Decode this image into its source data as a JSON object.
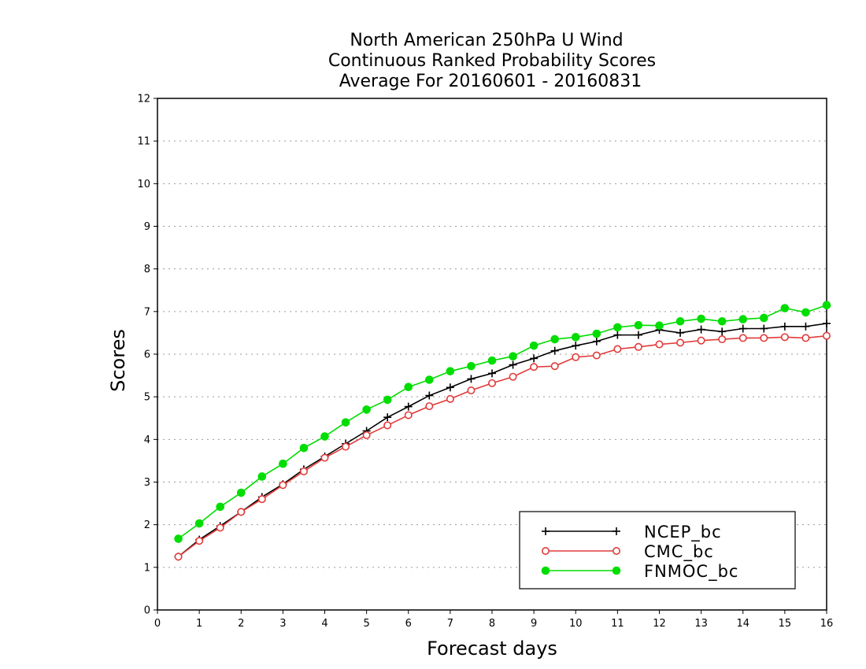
{
  "chart_data": {
    "type": "line",
    "title": [
      "North American 250hPa U Wind",
      "Continuous Ranked Probability Scores",
      "Average For 20160601 - 20160831"
    ],
    "xlabel": "Forecast days",
    "ylabel": "Scores",
    "xlim": [
      0,
      16
    ],
    "ylim": [
      0,
      12
    ],
    "xticks": [
      "0",
      "1",
      "2",
      "3",
      "4",
      "5",
      "6",
      "7",
      "8",
      "9",
      "10",
      "11",
      "12",
      "13",
      "14",
      "15",
      "16"
    ],
    "yticks": [
      "0",
      "1",
      "2",
      "3",
      "4",
      "5",
      "6",
      "7",
      "8",
      "9",
      "10",
      "11",
      "12"
    ],
    "grid": true,
    "legend_position": "bottom-right",
    "x": [
      0.5,
      1,
      1.5,
      2,
      2.5,
      3,
      3.5,
      4,
      4.5,
      5,
      5.5,
      6,
      6.5,
      7,
      7.5,
      8,
      8.5,
      9,
      9.5,
      10,
      10.5,
      11,
      11.5,
      12,
      12.5,
      13,
      13.5,
      14,
      14.5,
      15,
      15.5,
      16
    ],
    "series": [
      {
        "name": "NCEP_bc",
        "color": "#000000",
        "marker": "plus",
        "values": [
          1.25,
          1.65,
          1.97,
          2.3,
          2.65,
          2.95,
          3.3,
          3.6,
          3.9,
          4.2,
          4.52,
          4.77,
          5.03,
          5.22,
          5.42,
          5.55,
          5.75,
          5.9,
          6.08,
          6.2,
          6.3,
          6.45,
          6.45,
          6.57,
          6.5,
          6.58,
          6.53,
          6.6,
          6.6,
          6.65,
          6.65,
          6.72
        ]
      },
      {
        "name": "CMC_bc",
        "color": "#e23a3a",
        "marker": "open-circle",
        "values": [
          1.25,
          1.62,
          1.93,
          2.3,
          2.6,
          2.93,
          3.25,
          3.57,
          3.83,
          4.1,
          4.33,
          4.57,
          4.78,
          4.95,
          5.15,
          5.32,
          5.47,
          5.7,
          5.72,
          5.93,
          5.97,
          6.12,
          6.17,
          6.23,
          6.27,
          6.32,
          6.35,
          6.38,
          6.38,
          6.4,
          6.38,
          6.43
        ]
      },
      {
        "name": "FNMOC_bc",
        "color": "#00dd00",
        "marker": "filled-circle",
        "values": [
          1.67,
          2.03,
          2.42,
          2.75,
          3.13,
          3.43,
          3.8,
          4.07,
          4.4,
          4.7,
          4.93,
          5.23,
          5.4,
          5.6,
          5.72,
          5.85,
          5.95,
          6.2,
          6.35,
          6.4,
          6.48,
          6.63,
          6.68,
          6.67,
          6.77,
          6.83,
          6.77,
          6.82,
          6.85,
          7.08,
          6.98,
          7.15
        ]
      }
    ]
  }
}
